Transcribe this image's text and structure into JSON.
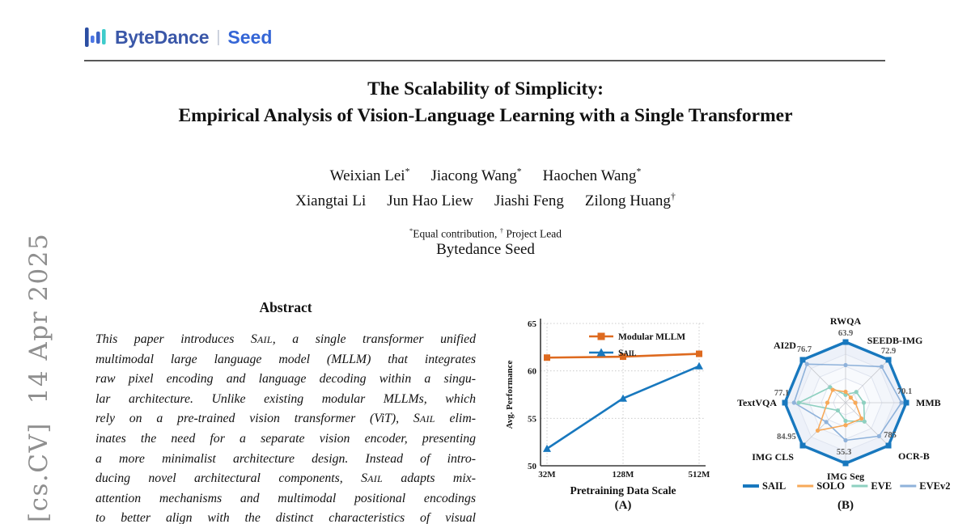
{
  "stamp": {
    "text": "[cs.CV]  14 Apr 2025",
    "color": "#8f8f8f"
  },
  "header": {
    "logo": {
      "brand": "ByteDance",
      "separator": "|",
      "product": "Seed",
      "brand_color": "#3A57A8",
      "product_color": "#3566D6",
      "icon_colors": [
        "#2B4EA2",
        "#4C77E6",
        "#3B62C4",
        "#3ECCCB"
      ]
    },
    "rule_color": "#585858"
  },
  "title": {
    "line1": "The Scalability of Simplicity:",
    "line2": "Empirical Analysis of Vision-Language Learning with a Single Transformer"
  },
  "authors": {
    "rows": [
      [
        {
          "name": "Weixian Lei",
          "sup": "*"
        },
        {
          "name": "Jiacong Wang",
          "sup": "*"
        },
        {
          "name": "Haochen Wang",
          "sup": "*"
        }
      ],
      [
        {
          "name": "Xiangtai Li",
          "sup": ""
        },
        {
          "name": "Jun Hao Liew",
          "sup": ""
        },
        {
          "name": "Jiashi Feng",
          "sup": ""
        },
        {
          "name": "Zilong Huang",
          "sup": "†"
        }
      ]
    ],
    "note": {
      "sup1": "*",
      "text1": "Equal contribution,",
      "sup2": "†",
      "text2": "Project Lead"
    },
    "affiliation": "Bytedance Seed"
  },
  "abstract": {
    "heading": "Abstract",
    "lines": [
      "This paper introduces SAIL, a single transformer unified",
      "multimodal large language model (MLLM) that integrates",
      "raw pixel encoding and language decoding within a singu-",
      "lar architecture. Unlike existing modular MLLMs, which",
      "rely on a pre-trained vision transformer (ViT), SAIL elim-",
      "inates the need for a separate vision encoder, presenting",
      "a more minimalist architecture design. Instead of intro-",
      "ducing novel architectural components, SAIL adapts mix-",
      "attention mechanisms and multimodal positional encodings",
      "to better align with the distinct characteristics of visual"
    ]
  },
  "chart_data": [
    {
      "type": "line",
      "title": "",
      "categories": [
        "32M",
        "128M",
        "512M"
      ],
      "series": [
        {
          "name": "Modular MLLM",
          "color": "#DE6A1F",
          "marker": "square",
          "values": [
            61.4,
            61.5,
            61.8
          ]
        },
        {
          "name": "SAIL",
          "color": "#1878BE",
          "marker": "triangle",
          "values": [
            51.8,
            57.1,
            60.5
          ]
        }
      ],
      "xlabel": "Pretraining Data Scale",
      "ylabel": "Avg. Performance",
      "ylim": [
        50,
        65
      ],
      "yticks": [
        50,
        55,
        60,
        65
      ],
      "grid": true,
      "legend_position": "top-right-inside",
      "caption": "(A)",
      "style": {
        "axis_color": "#3a3a3a",
        "grid_color": "#cccccc",
        "tick_color": "#1a1a1a"
      }
    },
    {
      "type": "radar",
      "axes": [
        {
          "label": "RWQA",
          "value": "63.9"
        },
        {
          "label": "SEEDB-IMG",
          "value": "72.9"
        },
        {
          "label": "MMB",
          "value": "70.1"
        },
        {
          "label": "OCR-B",
          "value": "785"
        },
        {
          "label": "IMG Seg",
          "value": "55.3"
        },
        {
          "label": "IMG CLS",
          "value": "84.95"
        },
        {
          "label": "TextVQA",
          "value": "77.1"
        },
        {
          "label": "AI2D",
          "value": "76.7"
        }
      ],
      "series": [
        {
          "name": "SAIL",
          "color": "#1878BE",
          "r_fraction": [
            1,
            1,
            1,
            1,
            1,
            1,
            1,
            1
          ]
        },
        {
          "name": "SOLO",
          "color": "#F7A959",
          "r_fraction": [
            0.18,
            0.12,
            0.16,
            0.37,
            0.37,
            0.65,
            0.3,
            0.3
          ]
        },
        {
          "name": "EVE",
          "color": "#8ED0C0",
          "r_fraction": [
            0.13,
            0.25,
            0.3,
            0.44,
            0.3,
            0.18,
            0.77,
            0.36
          ]
        },
        {
          "name": "EVEv2",
          "color": "#8FB2DA",
          "r_fraction": [
            0.62,
            0.84,
            0.92,
            0.78,
            0.62,
            0.45,
            0.85,
            0.9
          ]
        }
      ],
      "legend_position": "bottom",
      "caption": "(B)",
      "style": {
        "ring_stroke": "#dfe4ef",
        "spoke_color": "#c7c9ce",
        "ring_fills": [
          "#edf1f9",
          "#f3f6fb",
          "#f8fafd",
          "#fcfdff",
          "#ffffff"
        ],
        "value_label_color": "#5a5a5a"
      }
    }
  ]
}
